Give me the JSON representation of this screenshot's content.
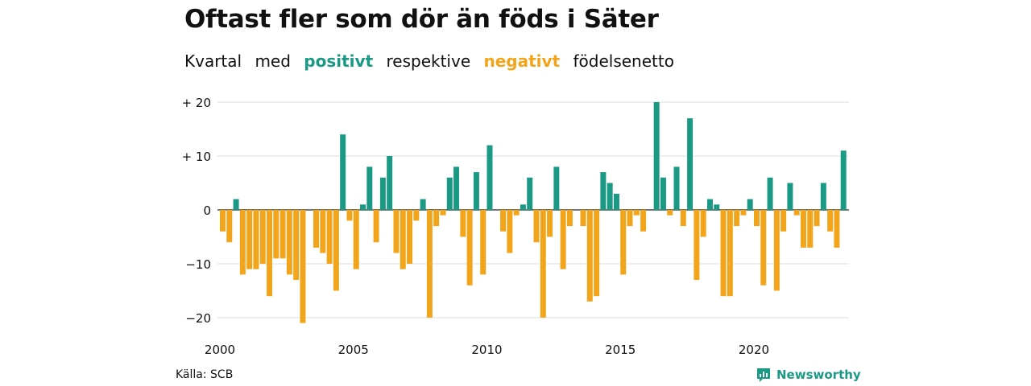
{
  "header": {
    "title": "Oftast fler som dör än föds i Säter",
    "subtitle_part1": "Kvartal",
    "subtitle_part2": "med",
    "subtitle_positive": "positivt",
    "subtitle_part3": "respektive",
    "subtitle_negative": "negativt",
    "subtitle_part4": "födelsenetto"
  },
  "footer": {
    "source": "Källa: SCB",
    "brand": "Newsworthy",
    "brand_icon": "newsworthy-logo-icon"
  },
  "colors": {
    "positive": "#1a9a85",
    "negative": "#f2a51b",
    "grid": "#dddddd"
  },
  "chart_data": {
    "type": "bar",
    "start_period": "2000 Q1",
    "frequency": "quarterly",
    "values": [
      -4,
      -6,
      2,
      -12,
      -11,
      -11,
      -10,
      -16,
      -9,
      -9,
      -12,
      -13,
      -21,
      0,
      -7,
      -8,
      -10,
      -15,
      14,
      -2,
      -11,
      1,
      8,
      -6,
      6,
      10,
      -8,
      -11,
      -10,
      -2,
      2,
      -20,
      -3,
      -1,
      6,
      8,
      -5,
      -14,
      7,
      -12,
      12,
      0,
      -4,
      -8,
      -1,
      1,
      6,
      -6,
      -20,
      -5,
      8,
      -11,
      -3,
      0,
      -3,
      -17,
      -16,
      7,
      5,
      3,
      -12,
      -3,
      -1,
      -4,
      0,
      20,
      6,
      -1,
      8,
      -3,
      17,
      -13,
      -5,
      2,
      1,
      -16,
      -16,
      -3,
      -1,
      2,
      -3,
      -14,
      6,
      -15,
      -4,
      5,
      -1,
      -7,
      -7,
      -3,
      5,
      -4,
      -7,
      11
    ],
    "x_ticks": [
      "2000",
      "2005",
      "2010",
      "2015",
      "2020"
    ],
    "y_ticks": [
      20,
      10,
      0,
      -10,
      -20
    ],
    "y_tick_labels": [
      "+ 20",
      "+ 10",
      "0",
      "−10",
      "−20"
    ],
    "ylim": [
      -21,
      20
    ],
    "grid": true,
    "legend": "none"
  }
}
